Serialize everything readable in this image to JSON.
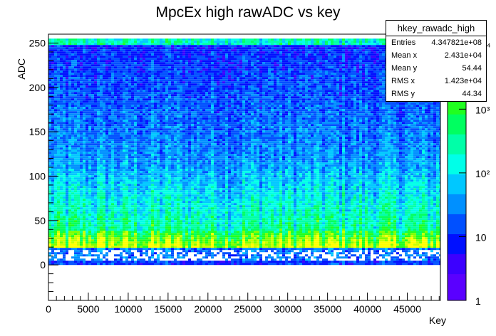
{
  "chart_data": {
    "type": "heatmap",
    "title": "MpcEx high rawADC vs key",
    "xlabel": "Key",
    "ylabel": "ADC",
    "xlim": [
      0,
      49152
    ],
    "ylim": [
      -40,
      260
    ],
    "x_ticks": [
      "0",
      "5000",
      "10000",
      "15000",
      "20000",
      "25000",
      "30000",
      "35000",
      "40000",
      "45000"
    ],
    "x_tick_values": [
      0,
      5000,
      10000,
      15000,
      20000,
      25000,
      30000,
      35000,
      40000,
      45000
    ],
    "y_ticks": [
      "0",
      "50",
      "100",
      "150",
      "200",
      "250"
    ],
    "y_tick_values": [
      0,
      50,
      100,
      150,
      200,
      250
    ],
    "z_scale": "log",
    "z_range": [
      1,
      15000
    ],
    "z_ticks": [
      "1",
      "10",
      "10²",
      "10³",
      "10⁴"
    ],
    "z_tick_values": [
      1,
      10,
      100,
      1000,
      10000
    ],
    "palette": [
      "#5a00ff",
      "#3c00ff",
      "#0010ff",
      "#0050ff",
      "#0090ff",
      "#00c8ff",
      "#00ffe8",
      "#00ffa8",
      "#00ff60",
      "#20ff20",
      "#80ff00",
      "#c8ff00",
      "#ffff00"
    ],
    "regions": [
      {
        "adc_range": [
          0,
          5
        ],
        "intensity": "high",
        "color": "blue-white band"
      },
      {
        "adc_range": [
          5,
          20
        ],
        "intensity": "medium",
        "color": "white/blue scatter"
      },
      {
        "adc_range": [
          20,
          40
        ],
        "intensity": "peak",
        "color": "green/yellow"
      },
      {
        "adc_range": [
          40,
          120
        ],
        "intensity": "medium-low",
        "color": "cyan/blue"
      },
      {
        "adc_range": [
          120,
          250
        ],
        "intensity": "low",
        "color": "blue/purple"
      },
      {
        "adc_range": [
          250,
          255
        ],
        "intensity": "high",
        "color": "cyan overflow band"
      }
    ]
  },
  "stats": {
    "name": "hkey_rawadc_high",
    "rows": [
      {
        "label": "Entries",
        "value": "4.347821e+08"
      },
      {
        "label": "Mean x",
        "value": "2.431e+04"
      },
      {
        "label": "Mean y",
        "value": "54.44"
      },
      {
        "label": "RMS x",
        "value": "1.423e+04"
      },
      {
        "label": "RMS y",
        "value": "44.34"
      }
    ]
  }
}
